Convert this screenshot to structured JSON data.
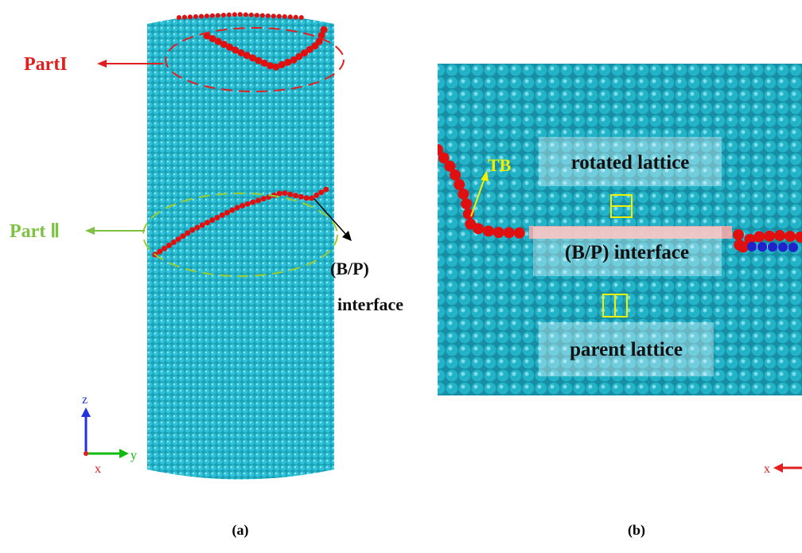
{
  "panel_a": {
    "part1_label": "PartI",
    "part2_label": "Part Ⅱ",
    "interface_label": [
      "(B/P)",
      "interface"
    ],
    "axes": {
      "z": "z",
      "y": "y",
      "x": "x"
    },
    "caption": "(a)"
  },
  "panel_b": {
    "labels": [
      "rotated lattice",
      "(B/P) interface",
      "parent lattice"
    ],
    "tb": "TB",
    "axis_x": "x",
    "caption": "(b)"
  }
}
